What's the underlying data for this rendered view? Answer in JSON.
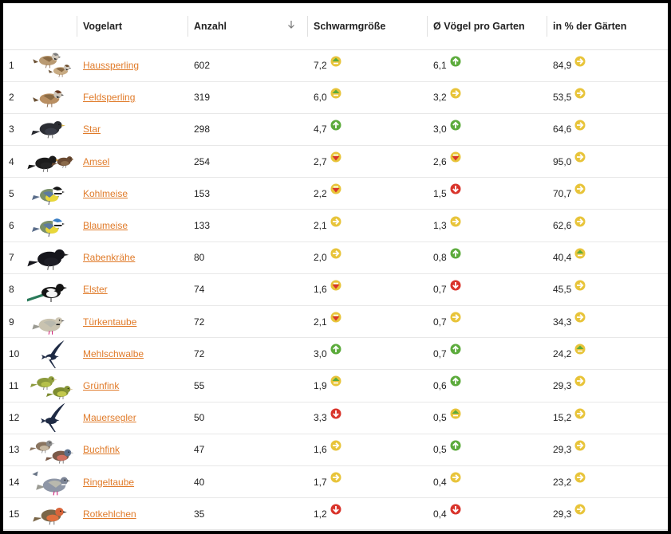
{
  "columns": {
    "rank": "",
    "image": "",
    "species": "Vogelart",
    "count": "Anzahl",
    "swarm": "Schwarmgröße",
    "avg": "Ø Vögel pro Garten",
    "pct": "in % der Gärten"
  },
  "sort": {
    "column": "count",
    "direction": "desc",
    "icon": "arrow-down-icon"
  },
  "colors": {
    "link": "#e07b2a",
    "trend_up": "#5cab3c",
    "trend_down": "#d9342b",
    "trend_flat": "#e8c43a"
  },
  "trend_legend": {
    "up": "green up arrow",
    "slightly-up": "yellow circle with green up chevron",
    "flat": "yellow right arrow",
    "slightly-down": "yellow circle with red down chevron",
    "down": "red down arrow"
  },
  "rows": [
    {
      "rank": "1",
      "name": "Haussperling",
      "icon": "house-sparrow-icon",
      "count": "602",
      "swarm": "7,2",
      "swarm_trend": "slightly-up",
      "avg": "6,1",
      "avg_trend": "up",
      "pct": "84,9",
      "pct_trend": "flat"
    },
    {
      "rank": "2",
      "name": "Feldsperling",
      "icon": "tree-sparrow-icon",
      "count": "319",
      "swarm": "6,0",
      "swarm_trend": "slightly-up",
      "avg": "3,2",
      "avg_trend": "flat",
      "pct": "53,5",
      "pct_trend": "flat"
    },
    {
      "rank": "3",
      "name": "Star",
      "icon": "starling-icon",
      "count": "298",
      "swarm": "4,7",
      "swarm_trend": "up",
      "avg": "3,0",
      "avg_trend": "up",
      "pct": "64,6",
      "pct_trend": "flat"
    },
    {
      "rank": "4",
      "name": "Amsel",
      "icon": "blackbird-icon",
      "count": "254",
      "swarm": "2,7",
      "swarm_trend": "slightly-down",
      "avg": "2,6",
      "avg_trend": "slightly-down",
      "pct": "95,0",
      "pct_trend": "flat"
    },
    {
      "rank": "5",
      "name": "Kohlmeise",
      "icon": "great-tit-icon",
      "count": "153",
      "swarm": "2,2",
      "swarm_trend": "slightly-down",
      "avg": "1,5",
      "avg_trend": "down",
      "pct": "70,7",
      "pct_trend": "flat"
    },
    {
      "rank": "6",
      "name": "Blaumeise",
      "icon": "blue-tit-icon",
      "count": "133",
      "swarm": "2,1",
      "swarm_trend": "flat",
      "avg": "1,3",
      "avg_trend": "flat",
      "pct": "62,6",
      "pct_trend": "flat"
    },
    {
      "rank": "7",
      "name": "Rabenkrähe",
      "icon": "carrion-crow-icon",
      "count": "80",
      "swarm": "2,0",
      "swarm_trend": "flat",
      "avg": "0,8",
      "avg_trend": "up",
      "pct": "40,4",
      "pct_trend": "slightly-up"
    },
    {
      "rank": "8",
      "name": "Elster",
      "icon": "magpie-icon",
      "count": "74",
      "swarm": "1,6",
      "swarm_trend": "slightly-down",
      "avg": "0,7",
      "avg_trend": "down",
      "pct": "45,5",
      "pct_trend": "flat"
    },
    {
      "rank": "9",
      "name": "Türkentaube",
      "icon": "collared-dove-icon",
      "count": "72",
      "swarm": "2,1",
      "swarm_trend": "slightly-down",
      "avg": "0,7",
      "avg_trend": "flat",
      "pct": "34,3",
      "pct_trend": "flat"
    },
    {
      "rank": "10",
      "name": "Mehlschwalbe",
      "icon": "house-martin-icon",
      "count": "72",
      "swarm": "3,0",
      "swarm_trend": "up",
      "avg": "0,7",
      "avg_trend": "up",
      "pct": "24,2",
      "pct_trend": "slightly-up"
    },
    {
      "rank": "11",
      "name": "Grünfink",
      "icon": "greenfinch-icon",
      "count": "55",
      "swarm": "1,9",
      "swarm_trend": "slightly-up",
      "avg": "0,6",
      "avg_trend": "up",
      "pct": "29,3",
      "pct_trend": "flat"
    },
    {
      "rank": "12",
      "name": "Mauersegler",
      "icon": "swift-icon",
      "count": "50",
      "swarm": "3,3",
      "swarm_trend": "down",
      "avg": "0,5",
      "avg_trend": "slightly-up",
      "pct": "15,2",
      "pct_trend": "flat"
    },
    {
      "rank": "13",
      "name": "Buchfink",
      "icon": "chaffinch-icon",
      "count": "47",
      "swarm": "1,6",
      "swarm_trend": "flat",
      "avg": "0,5",
      "avg_trend": "up",
      "pct": "29,3",
      "pct_trend": "flat"
    },
    {
      "rank": "14",
      "name": "Ringeltaube",
      "icon": "wood-pigeon-icon",
      "count": "40",
      "swarm": "1,7",
      "swarm_trend": "flat",
      "avg": "0,4",
      "avg_trend": "flat",
      "pct": "23,2",
      "pct_trend": "flat"
    },
    {
      "rank": "15",
      "name": "Rotkehlchen",
      "icon": "robin-icon",
      "count": "35",
      "swarm": "1,2",
      "swarm_trend": "down",
      "avg": "0,4",
      "avg_trend": "down",
      "pct": "29,3",
      "pct_trend": "flat"
    }
  ]
}
